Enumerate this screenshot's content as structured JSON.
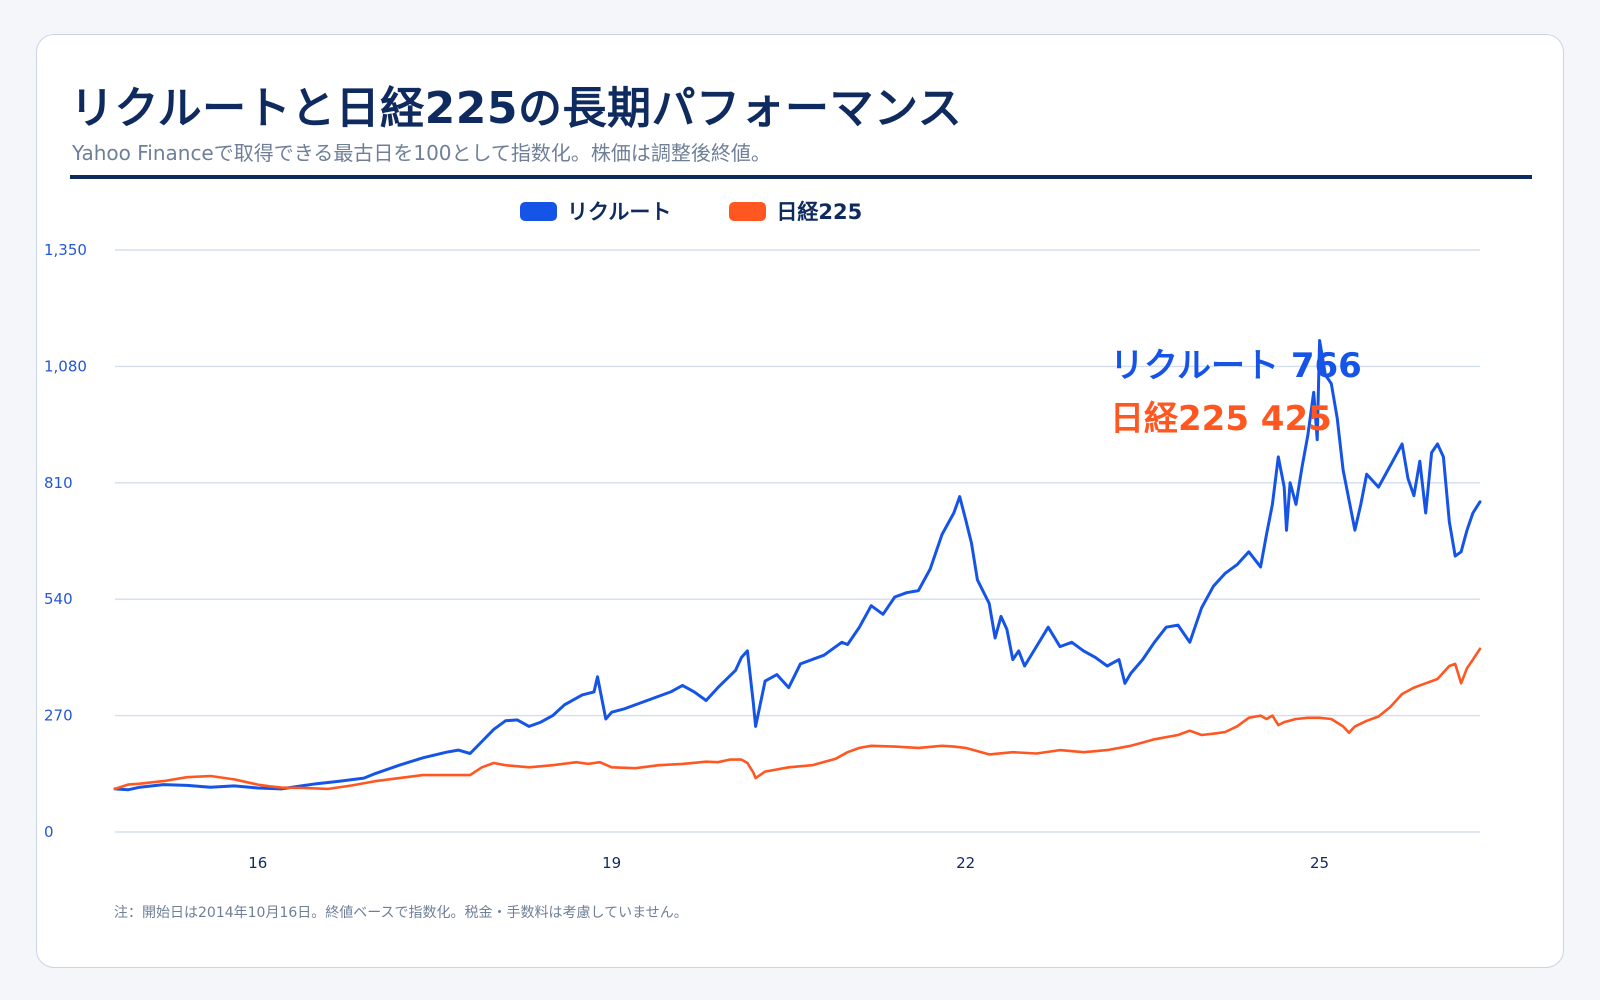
{
  "title": "リクルートと日経225の長期パフォーマンス",
  "subtitle": "Yahoo Financeで取得できる最古日を100として指数化。株価は調整後終値。",
  "footnote": "注：開始日は2014年10月16日。終値ベースで指数化。税金・手数料は考慮していません。",
  "colors": {
    "recruit": "#1554e6",
    "nikkei": "#ff5722",
    "grid": "#d3deee",
    "title": "#0f2a5e"
  },
  "chart_data": {
    "type": "line",
    "title": "リクルートと日経225の長期パフォーマンス",
    "xlabel": "",
    "ylabel": "",
    "x_unit": "year",
    "xlim": [
      2014.79,
      2026.36
    ],
    "ylim": [
      0,
      1350
    ],
    "y_ticks": [
      0,
      270,
      540,
      810,
      1080,
      1350
    ],
    "y_tick_labels": [
      "0",
      "270",
      "540",
      "810",
      "1,080",
      "1,350"
    ],
    "x_ticks": [
      2016,
      2019,
      2022,
      2025
    ],
    "x_tick_labels": [
      "16",
      "19",
      "22",
      "25"
    ],
    "grid": true,
    "legend": "top-center",
    "series": [
      {
        "name": "リクルート",
        "color": "#1554e6",
        "x": [
          2014.79,
          2014.9,
          2015.0,
          2015.2,
          2015.4,
          2015.6,
          2015.8,
          2016.0,
          2016.2,
          2016.4,
          2016.5,
          2016.7,
          2016.9,
          2017.0,
          2017.2,
          2017.4,
          2017.6,
          2017.7,
          2017.8,
          2017.9,
          2018.0,
          2018.1,
          2018.2,
          2018.3,
          2018.4,
          2018.5,
          2018.6,
          2018.75,
          2018.85,
          2018.88,
          2018.95,
          2019.0,
          2019.1,
          2019.3,
          2019.5,
          2019.6,
          2019.7,
          2019.8,
          2019.9,
          2020.05,
          2020.1,
          2020.15,
          2020.2,
          2020.22,
          2020.3,
          2020.4,
          2020.5,
          2020.6,
          2020.8,
          2020.95,
          2021.0,
          2021.1,
          2021.2,
          2021.3,
          2021.4,
          2021.5,
          2021.6,
          2021.7,
          2021.8,
          2021.9,
          2021.95,
          2022.0,
          2022.05,
          2022.1,
          2022.2,
          2022.25,
          2022.3,
          2022.35,
          2022.4,
          2022.45,
          2022.5,
          2022.6,
          2022.7,
          2022.8,
          2022.9,
          2023.0,
          2023.1,
          2023.2,
          2023.3,
          2023.35,
          2023.4,
          2023.5,
          2023.6,
          2023.7,
          2023.8,
          2023.9,
          2024.0,
          2024.1,
          2024.2,
          2024.3,
          2024.4,
          2024.5,
          2024.55,
          2024.6,
          2024.65,
          2024.7,
          2024.72,
          2024.75,
          2024.8,
          2024.85,
          2024.9,
          2024.95,
          2024.98,
          2025.0,
          2025.05,
          2025.1,
          2025.15,
          2025.2,
          2025.25,
          2025.3,
          2025.35,
          2025.4,
          2025.5,
          2025.6,
          2025.7,
          2025.75,
          2025.8,
          2025.85,
          2025.9,
          2025.95,
          2026.0,
          2026.05,
          2026.1,
          2026.15,
          2026.2,
          2026.25,
          2026.3,
          2026.36
        ],
        "y": [
          100,
          98,
          104,
          110,
          108,
          104,
          107,
          102,
          100,
          108,
          112,
          118,
          125,
          136,
          155,
          172,
          185,
          190,
          182,
          210,
          238,
          258,
          260,
          245,
          255,
          270,
          295,
          318,
          325,
          360,
          262,
          278,
          285,
          305,
          325,
          340,
          325,
          305,
          335,
          375,
          405,
          420,
          300,
          245,
          350,
          365,
          335,
          390,
          410,
          440,
          435,
          475,
          525,
          505,
          545,
          555,
          560,
          610,
          690,
          740,
          778,
          725,
          670,
          585,
          530,
          450,
          500,
          470,
          400,
          420,
          385,
          430,
          475,
          430,
          440,
          420,
          405,
          385,
          400,
          345,
          368,
          400,
          440,
          475,
          480,
          440,
          520,
          570,
          600,
          620,
          650,
          615,
          690,
          760,
          870,
          800,
          700,
          810,
          760,
          845,
          920,
          1020,
          910,
          1140,
          1060,
          1040,
          960,
          840,
          770,
          700,
          760,
          830,
          800,
          850,
          900,
          820,
          780,
          860,
          740,
          880,
          900,
          870,
          720,
          640,
          650,
          700,
          740,
          766
        ]
      },
      {
        "name": "日経225",
        "color": "#ff5722",
        "x": [
          2014.79,
          2014.9,
          2015.0,
          2015.2,
          2015.4,
          2015.6,
          2015.8,
          2016.0,
          2016.1,
          2016.2,
          2016.4,
          2016.6,
          2016.8,
          2017.0,
          2017.2,
          2017.4,
          2017.6,
          2017.8,
          2017.9,
          2018.0,
          2018.1,
          2018.3,
          2018.5,
          2018.7,
          2018.8,
          2018.9,
          2019.0,
          2019.2,
          2019.4,
          2019.6,
          2019.8,
          2019.9,
          2020.0,
          2020.1,
          2020.15,
          2020.2,
          2020.22,
          2020.3,
          2020.5,
          2020.7,
          2020.9,
          2021.0,
          2021.1,
          2021.2,
          2021.4,
          2021.6,
          2021.8,
          2021.9,
          2022.0,
          2022.2,
          2022.4,
          2022.6,
          2022.8,
          2023.0,
          2023.2,
          2023.4,
          2023.6,
          2023.8,
          2023.9,
          2024.0,
          2024.1,
          2024.2,
          2024.3,
          2024.4,
          2024.5,
          2024.55,
          2024.6,
          2024.65,
          2024.7,
          2024.8,
          2024.9,
          2025.0,
          2025.1,
          2025.2,
          2025.25,
          2025.3,
          2025.4,
          2025.5,
          2025.6,
          2025.7,
          2025.8,
          2025.9,
          2026.0,
          2026.05,
          2026.1,
          2026.15,
          2026.2,
          2026.25,
          2026.3,
          2026.36
        ],
        "y": [
          100,
          110,
          112,
          118,
          127,
          130,
          122,
          110,
          106,
          103,
          102,
          100,
          108,
          118,
          125,
          132,
          132,
          132,
          150,
          160,
          155,
          150,
          155,
          162,
          158,
          162,
          150,
          148,
          155,
          158,
          163,
          162,
          168,
          168,
          160,
          138,
          125,
          140,
          150,
          155,
          170,
          185,
          195,
          200,
          198,
          195,
          200,
          198,
          195,
          180,
          185,
          182,
          190,
          185,
          190,
          200,
          215,
          225,
          235,
          225,
          228,
          232,
          245,
          265,
          270,
          262,
          270,
          248,
          255,
          262,
          265,
          265,
          262,
          245,
          230,
          245,
          258,
          268,
          290,
          320,
          335,
          345,
          355,
          370,
          385,
          390,
          345,
          380,
          400,
          425
        ]
      }
    ]
  },
  "legend": {
    "recruit_label": "リクルート",
    "nikkei_label": "日経225"
  },
  "annotations": {
    "recruit": "リクルート 766",
    "nikkei": "日経225 425"
  }
}
